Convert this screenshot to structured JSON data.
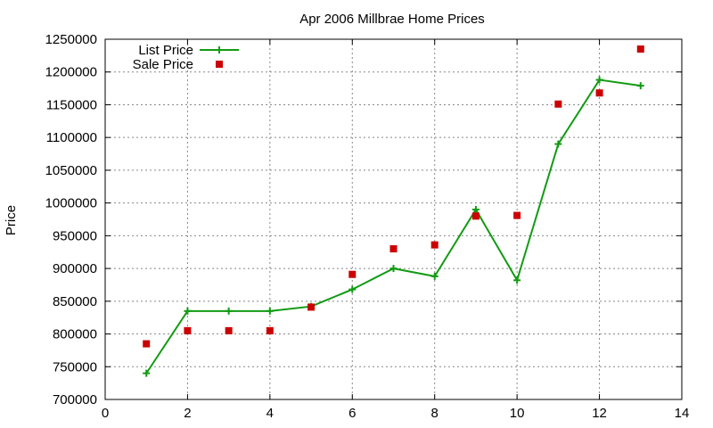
{
  "chart_data": {
    "type": "line",
    "title": "Apr 2006 Millbrae Home Prices",
    "xlabel": "",
    "ylabel": "Price",
    "xlim": [
      0,
      14
    ],
    "ylim": [
      700000,
      1250000
    ],
    "xticks": [
      0,
      2,
      4,
      6,
      8,
      10,
      12,
      14
    ],
    "yticks": [
      700000,
      750000,
      800000,
      850000,
      900000,
      950000,
      1000000,
      1050000,
      1100000,
      1150000,
      1200000,
      1250000
    ],
    "grid": true,
    "legend_position": "top-left",
    "series": [
      {
        "name": "List Price",
        "style": "line-with-plus-markers",
        "color": "#129b12",
        "x": [
          1,
          2,
          3,
          4,
          5,
          6,
          7,
          8,
          9,
          10,
          11,
          12,
          13
        ],
        "values": [
          740000,
          835000,
          835000,
          835000,
          842000,
          868000,
          900000,
          888000,
          990000,
          882000,
          1090000,
          1188000,
          1179000
        ]
      },
      {
        "name": "Sale Price",
        "style": "square-markers",
        "color": "#cc0000",
        "x": [
          1,
          2,
          3,
          4,
          5,
          6,
          7,
          8,
          9,
          10,
          11,
          12,
          13
        ],
        "values": [
          785000,
          805000,
          805000,
          805000,
          841000,
          891000,
          930000,
          936000,
          980000,
          981000,
          1151000,
          1168000,
          1235000
        ]
      }
    ]
  }
}
